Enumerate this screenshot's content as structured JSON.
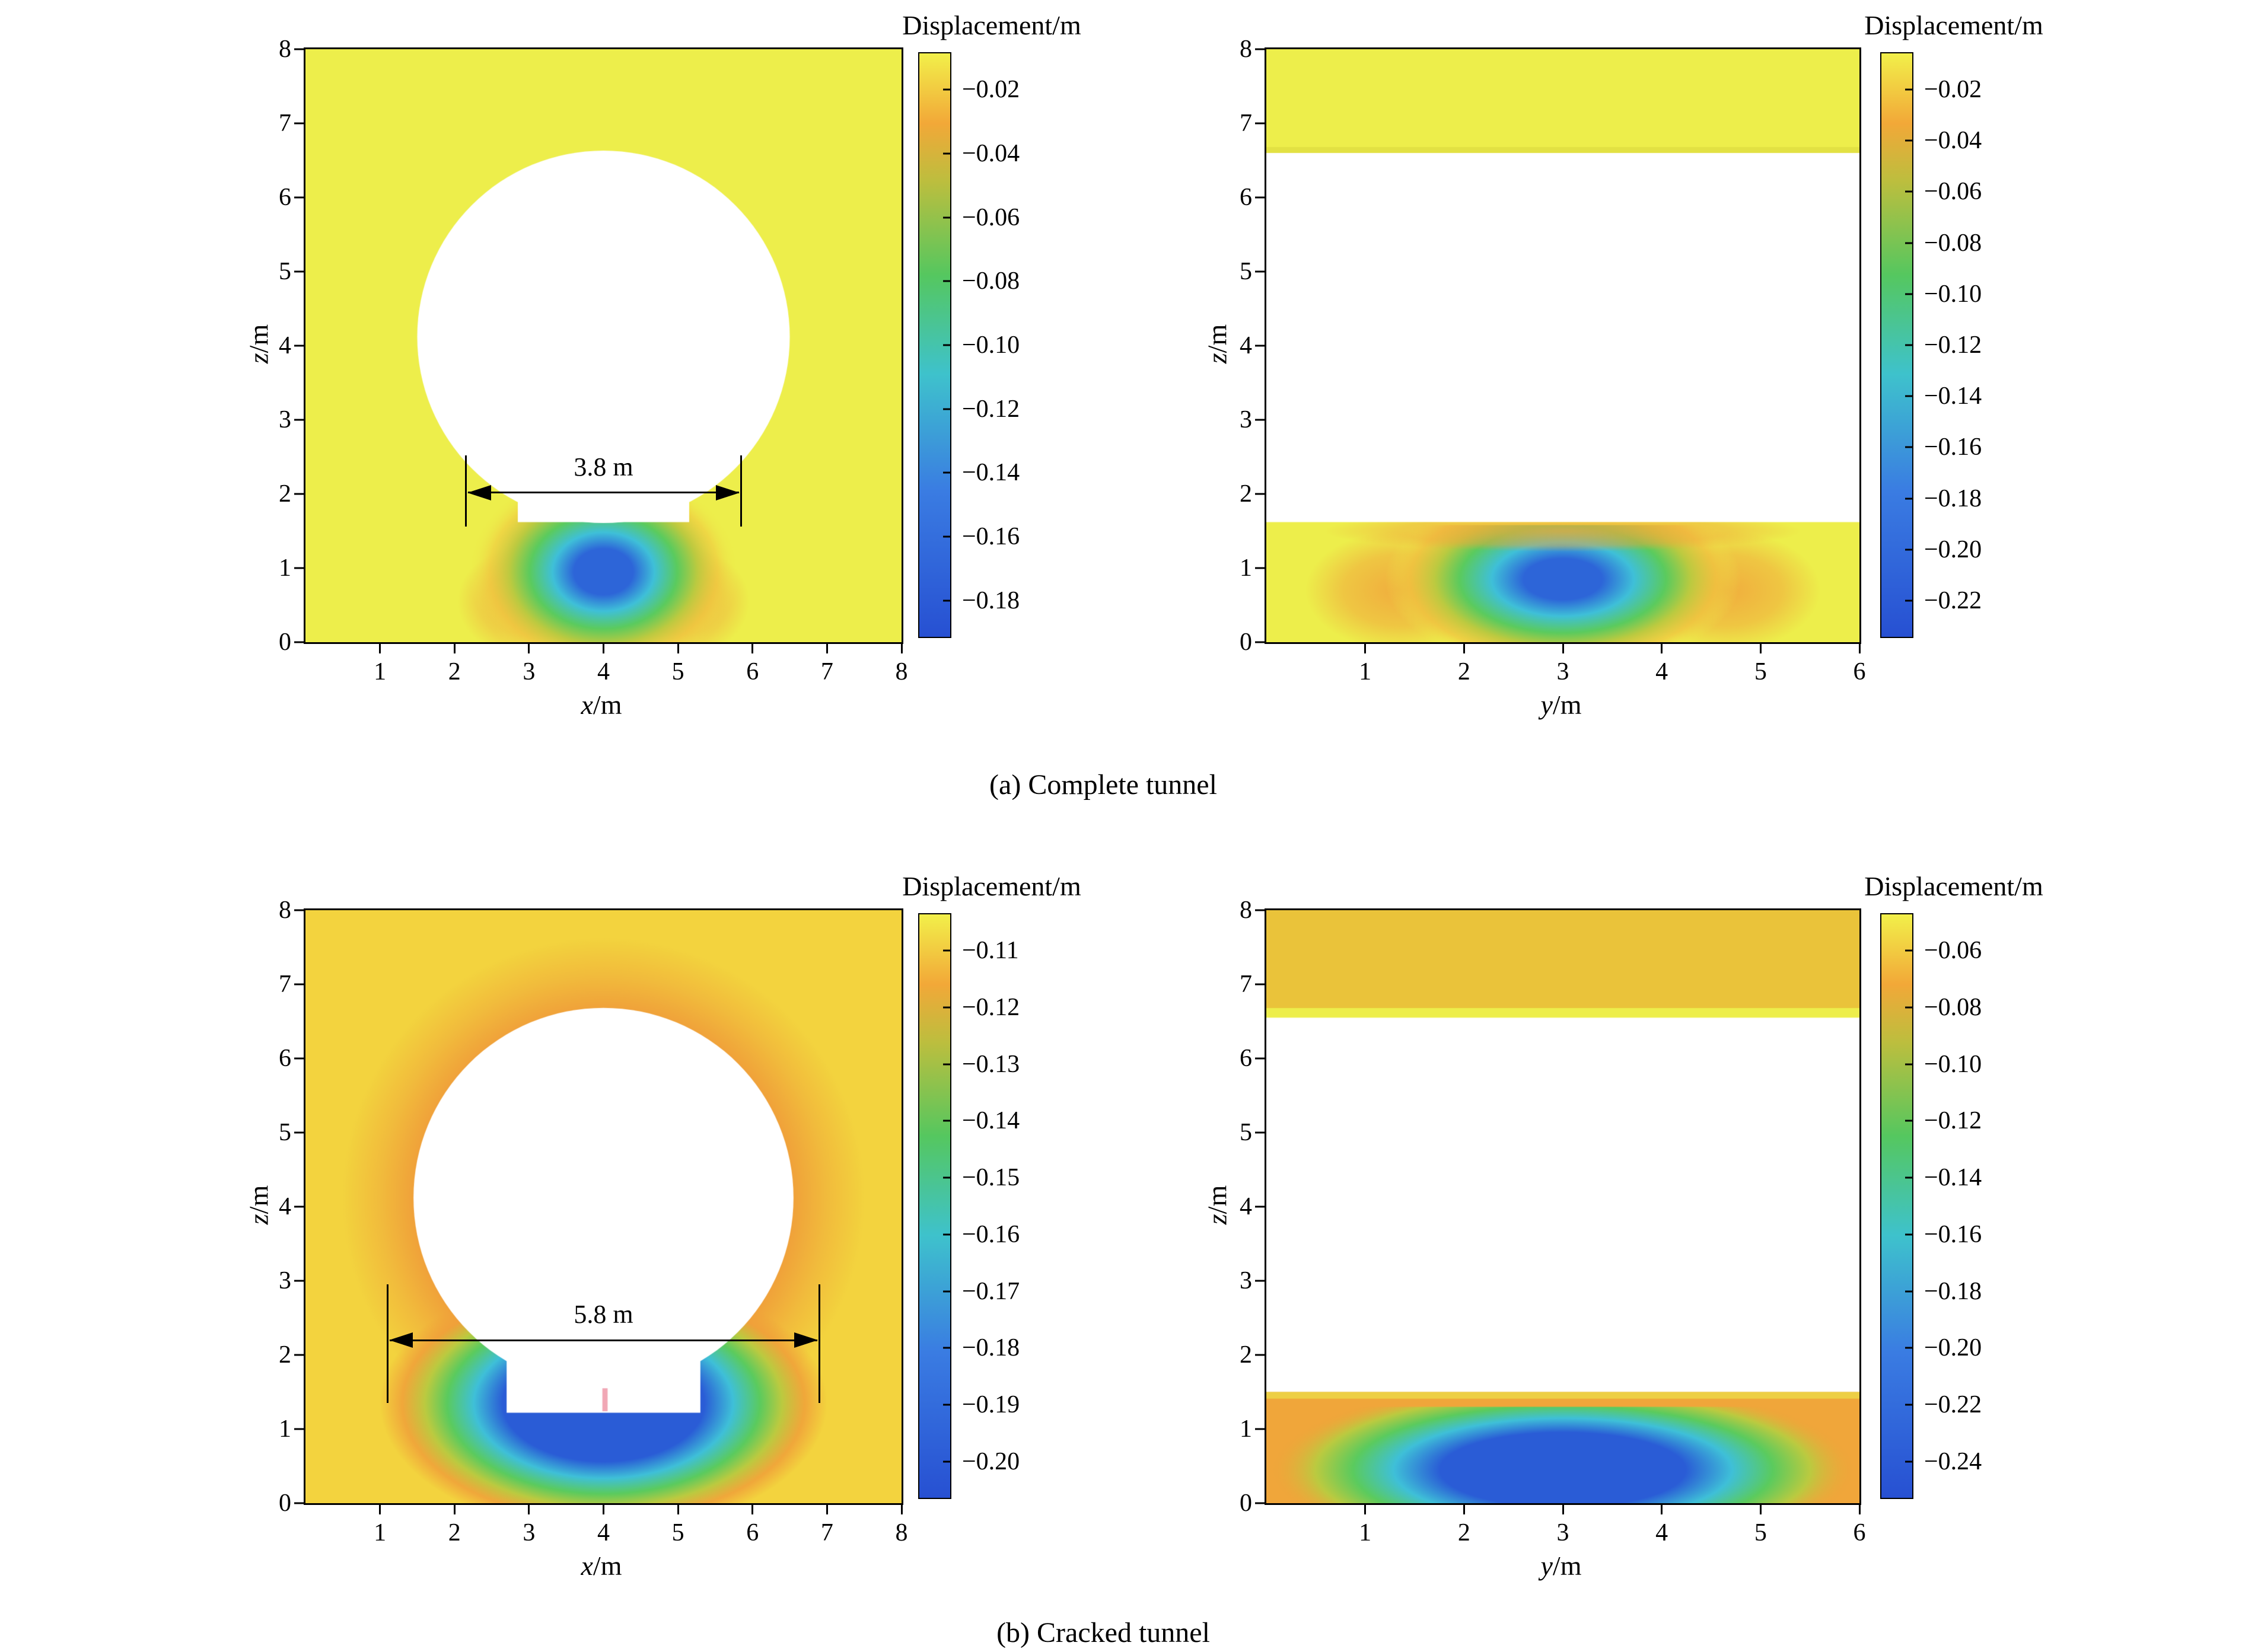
{
  "page": {
    "background": "#ffffff"
  },
  "chart_data": {
    "type": "heatmap",
    "captions": {
      "a": "(a) Complete tunnel",
      "b": "(b) Cracked tunnel"
    },
    "colormap_stops": [
      [
        0,
        "#f2f04a"
      ],
      [
        0.12,
        "#f2a838"
      ],
      [
        0.22,
        "#bcbe3e"
      ],
      [
        0.38,
        "#55c75f"
      ],
      [
        0.55,
        "#3ec2cc"
      ],
      [
        0.75,
        "#3a7ce2"
      ],
      [
        1,
        "#2750d2"
      ]
    ],
    "panels": [
      {
        "name": "complete-tunnel-xz",
        "xlabel_var": "x",
        "xlabel_unit": "/m",
        "ylabel_var": "z",
        "ylabel_unit": "/m",
        "xlim": [
          0,
          8
        ],
        "zlim": [
          0,
          8
        ],
        "xticks": [
          1,
          2,
          3,
          4,
          5,
          6,
          7,
          8
        ],
        "zticks": [
          0,
          1,
          2,
          3,
          4,
          5,
          6,
          7,
          8
        ],
        "colorbar": {
          "title": "Displacement/m",
          "tick_labels": [
            "−0.02",
            "−0.04",
            "−0.06",
            "−0.08",
            "−0.10",
            "−0.12",
            "−0.14",
            "−0.16",
            "−0.18"
          ]
        },
        "annotation": {
          "text": "3.8 m",
          "x0": 2.15,
          "x1": 5.85,
          "z": 2.02,
          "bar_z0": 1.56,
          "bar_z1": 2.52
        },
        "features": [
          {
            "type": "fill",
            "color": "#edee4b"
          },
          {
            "type": "radial",
            "cx": 2.95,
            "cy": 0.55,
            "rx": 0.9,
            "ry": 0.75,
            "stops": [
              [
                0,
                "rgba(241,166,60,0.8)"
              ],
              [
                0.6,
                "rgba(241,166,60,0.5)"
              ],
              [
                1,
                "rgba(241,166,60,0)"
              ]
            ]
          },
          {
            "type": "radial",
            "cx": 5.05,
            "cy": 0.55,
            "rx": 0.9,
            "ry": 0.75,
            "stops": [
              [
                0,
                "rgba(241,166,60,0.8)"
              ],
              [
                0.6,
                "rgba(241,166,60,0.5)"
              ],
              [
                1,
                "rgba(241,166,60,0)"
              ]
            ]
          },
          {
            "type": "radial",
            "cx": 4,
            "cy": 0.95,
            "rx": 1.8,
            "ry": 1.4,
            "stops": [
              [
                0,
                "#2d65d8"
              ],
              [
                0.22,
                "#2d65d8"
              ],
              [
                0.38,
                "#3fc0d8"
              ],
              [
                0.55,
                "#5bcb5e"
              ],
              [
                0.7,
                "#bcca40"
              ],
              [
                0.85,
                "rgba(240,200,64,0.6)"
              ],
              [
                1,
                "rgba(237,238,75,0)"
              ]
            ]
          },
          {
            "type": "tunnel",
            "cx": 4,
            "cy": 4.12,
            "r": 2.5,
            "flat_x0": 2.85,
            "flat_x1": 5.15,
            "flat_z": 1.62
          }
        ]
      },
      {
        "name": "complete-tunnel-yz",
        "xlabel_var": "y",
        "xlabel_unit": "/m",
        "ylabel_var": "z",
        "ylabel_unit": "/m",
        "xlim": [
          0,
          6
        ],
        "zlim": [
          0,
          8
        ],
        "xticks": [
          1,
          2,
          3,
          4,
          5,
          6
        ],
        "zticks": [
          0,
          1,
          2,
          3,
          4,
          5,
          6,
          7,
          8
        ],
        "colorbar": {
          "title": "Displacement/m",
          "tick_labels": [
            "−0.02",
            "−0.04",
            "−0.06",
            "−0.08",
            "−0.10",
            "−0.12",
            "−0.14",
            "−0.16",
            "−0.18",
            "−0.20",
            "−0.22"
          ]
        },
        "features": [
          {
            "type": "fill",
            "color": "#ffffff"
          },
          {
            "type": "band",
            "z0": 6.6,
            "z1": 8,
            "color": "#edee4b"
          },
          {
            "type": "band",
            "z0": 6.6,
            "z1": 6.68,
            "color": "#e2e143"
          },
          {
            "type": "band",
            "z0": 0,
            "z1": 1.62,
            "color": "#edee4b"
          },
          {
            "type": "radial",
            "cx": 1.35,
            "cy": 0.7,
            "rx": 0.95,
            "ry": 0.8,
            "clip_z1": 1.62,
            "stops": [
              [
                0,
                "rgba(241,166,60,0.9)"
              ],
              [
                0.6,
                "rgba(241,166,60,0.55)"
              ],
              [
                1,
                "rgba(241,166,60,0)"
              ]
            ]
          },
          {
            "type": "radial",
            "cx": 4.65,
            "cy": 0.7,
            "rx": 0.95,
            "ry": 0.8,
            "clip_z1": 1.62,
            "stops": [
              [
                0,
                "rgba(241,166,60,0.9)"
              ],
              [
                0.6,
                "rgba(241,166,60,0.55)"
              ],
              [
                1,
                "rgba(241,166,60,0)"
              ]
            ]
          },
          {
            "type": "radial",
            "cx": 3,
            "cy": 0.85,
            "rx": 1.8,
            "ry": 1.25,
            "clip_z1": 1.58,
            "stops": [
              [
                0,
                "#2d65d8"
              ],
              [
                0.22,
                "#2d65d8"
              ],
              [
                0.4,
                "#3fc0d8"
              ],
              [
                0.58,
                "#5bcb5e"
              ],
              [
                0.72,
                "#bcca40"
              ],
              [
                0.86,
                "rgba(240,196,64,0.7)"
              ],
              [
                1,
                "rgba(237,238,75,0)"
              ]
            ]
          },
          {
            "type": "radial",
            "cx": 3,
            "cy": 1.5,
            "rx": 2.4,
            "ry": 0.28,
            "clip_z1": 1.62,
            "stops": [
              [
                0,
                "rgba(241,166,60,0.75)"
              ],
              [
                0.7,
                "rgba(241,166,60,0.45)"
              ],
              [
                1,
                "rgba(241,166,60,0)"
              ]
            ]
          }
        ]
      },
      {
        "name": "cracked-tunnel-xz",
        "xlabel_var": "x",
        "xlabel_unit": "/m",
        "ylabel_var": "z",
        "ylabel_unit": "/m",
        "xlim": [
          0,
          8
        ],
        "zlim": [
          0,
          8
        ],
        "xticks": [
          1,
          2,
          3,
          4,
          5,
          6,
          7,
          8
        ],
        "zticks": [
          0,
          1,
          2,
          3,
          4,
          5,
          6,
          7,
          8
        ],
        "colorbar": {
          "title": "Displacement/m",
          "tick_labels": [
            "−0.11",
            "−0.12",
            "−0.13",
            "−0.14",
            "−0.15",
            "−0.16",
            "−0.17",
            "−0.18",
            "−0.19",
            "−0.20"
          ]
        },
        "annotation": {
          "text": "5.8 m",
          "x0": 1.1,
          "x1": 6.9,
          "z": 2.2,
          "bar_z0": 1.35,
          "bar_z1": 2.95
        },
        "features": [
          {
            "type": "fill",
            "color": "#f3d33e"
          },
          {
            "type": "radial",
            "cx": 4,
            "cy": 4.12,
            "rx": 3.5,
            "ry": 3.5,
            "stops": [
              [
                0,
                "#f0a03a"
              ],
              [
                0.72,
                "#f0a03a"
              ],
              [
                0.86,
                "rgba(240,160,58,0.45)"
              ],
              [
                1,
                "rgba(240,160,58,0)"
              ]
            ]
          },
          {
            "type": "radial",
            "cx": 4,
            "cy": 1.35,
            "rx": 3.0,
            "ry": 1.75,
            "stops": [
              [
                0,
                "#2a5cd6"
              ],
              [
                0.45,
                "#2a5cd6"
              ],
              [
                0.58,
                "#3fc0d8"
              ],
              [
                0.7,
                "#5bcb5e"
              ],
              [
                0.8,
                "#bcca40"
              ],
              [
                0.9,
                "rgba(240,160,58,0.85)"
              ],
              [
                1,
                "rgba(240,160,58,0)"
              ]
            ]
          },
          {
            "type": "tunnel",
            "cx": 4,
            "cy": 4.12,
            "r": 2.55,
            "flat_x0": 2.7,
            "flat_x1": 5.3,
            "flat_z": 1.22
          },
          {
            "type": "crack",
            "x": 4.02,
            "z0": 1.24,
            "z1": 1.55,
            "w": 0.07,
            "color": "#f1a7b5"
          }
        ]
      },
      {
        "name": "cracked-tunnel-yz",
        "xlabel_var": "y",
        "xlabel_unit": "/m",
        "ylabel_var": "z",
        "ylabel_unit": "/m",
        "xlim": [
          0,
          6
        ],
        "zlim": [
          0,
          8
        ],
        "xticks": [
          1,
          2,
          3,
          4,
          5,
          6
        ],
        "zticks": [
          0,
          1,
          2,
          3,
          4,
          5,
          6,
          7,
          8
        ],
        "colorbar": {
          "title": "Displacement/m",
          "tick_labels": [
            "−0.06",
            "−0.08",
            "−0.10",
            "−0.12",
            "−0.14",
            "−0.16",
            "−0.18",
            "−0.20",
            "−0.22",
            "−0.24"
          ]
        },
        "features": [
          {
            "type": "fill",
            "color": "#ffffff"
          },
          {
            "type": "band",
            "z0": 6.68,
            "z1": 8,
            "color": "#eac33a"
          },
          {
            "type": "band",
            "z0": 6.55,
            "z1": 6.68,
            "color": "#edee4b"
          },
          {
            "type": "band",
            "z0": 0,
            "z1": 1.5,
            "color": "#f0a63a"
          },
          {
            "type": "radial",
            "cx": 3,
            "cy": 0.45,
            "rx": 2.95,
            "ry": 1.2,
            "clip_z1": 1.3,
            "stops": [
              [
                0,
                "#2a5cd6"
              ],
              [
                0.42,
                "#2a5cd6"
              ],
              [
                0.58,
                "#3fc0d8"
              ],
              [
                0.72,
                "#5bcb5e"
              ],
              [
                0.85,
                "#bcca40"
              ],
              [
                1,
                "rgba(240,166,58,0)"
              ]
            ]
          },
          {
            "type": "band",
            "z0": 1.41,
            "z1": 1.5,
            "color": "#edcf45"
          }
        ]
      }
    ]
  }
}
